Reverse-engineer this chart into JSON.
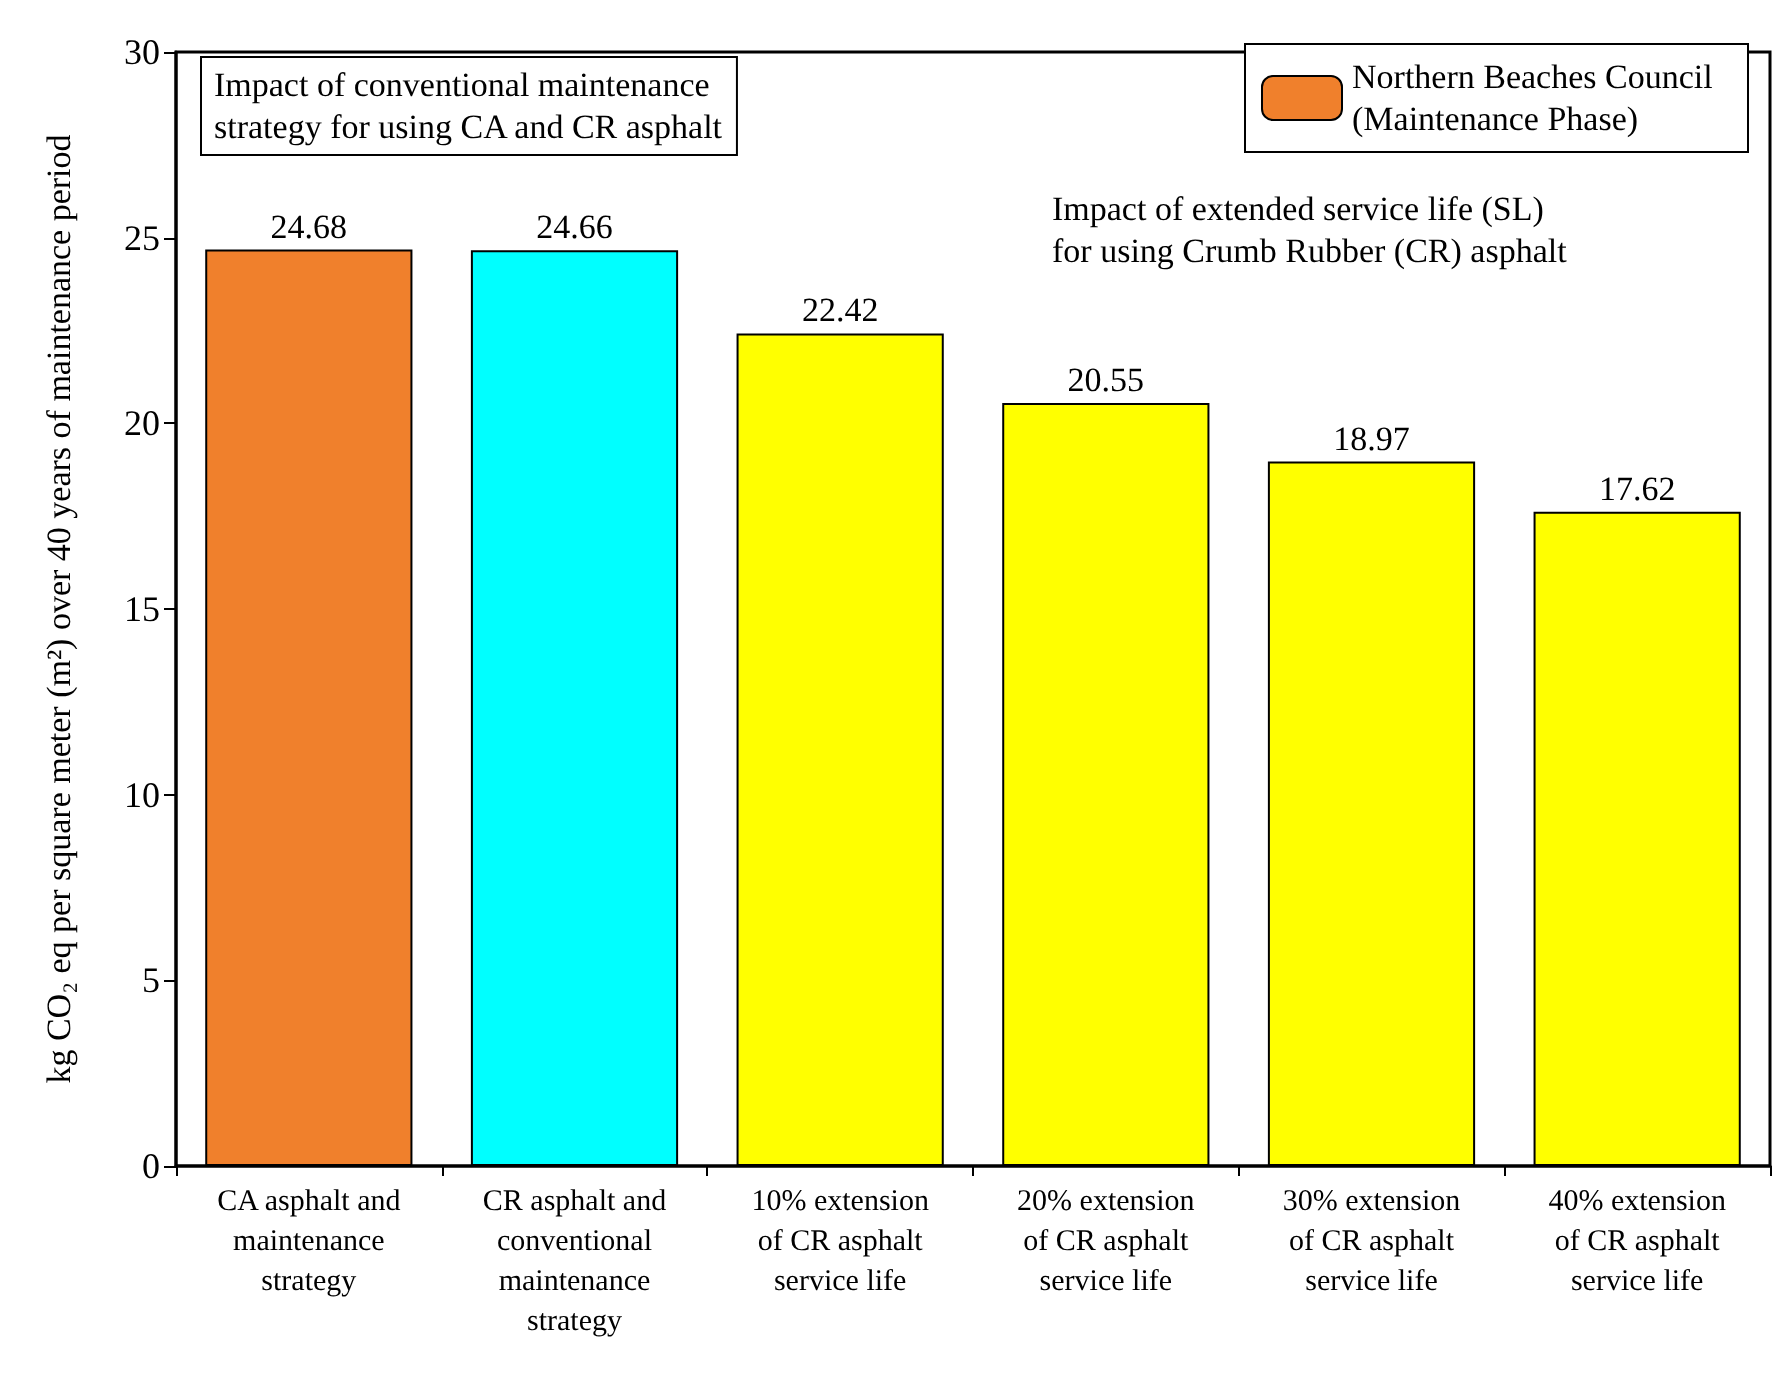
{
  "chart_data": {
    "type": "bar",
    "ylabel": "kg CO₂ eq per square meter (m²) over 40 years of maintenance period",
    "categories": [
      "CA asphalt and\nmaintenance\nstrategy",
      "CR asphalt and\nconventional\nmaintenance\nstrategy",
      "10% extension\nof CR asphalt\nservice life",
      "20% extension\nof CR asphalt\nservice life",
      "30% extension\nof CR asphalt\nservice life",
      "40% extension\nof CR asphalt\nservice life"
    ],
    "series": [
      {
        "name": "Northern Beaches Council (Maintenance Phase)",
        "color": "#f0802c",
        "colors": [
          "#f0802c",
          "#00ffff",
          "#ffff00",
          "#ffff00",
          "#ffff00",
          "#ffff00"
        ],
        "values": [
          24.68,
          24.66,
          22.42,
          20.55,
          18.97,
          17.62
        ]
      }
    ],
    "annotations": [
      "Impact of conventional maintenance\nstrategy for using CA and CR asphalt",
      "Impact of extended service life (SL)\nfor using Crumb Rubber (CR) asphalt"
    ],
    "ylim": [
      0,
      30
    ],
    "yticks": [
      0,
      5,
      10,
      15,
      20,
      25,
      30
    ],
    "data_labels": true,
    "grid": false,
    "legend": "top right"
  }
}
